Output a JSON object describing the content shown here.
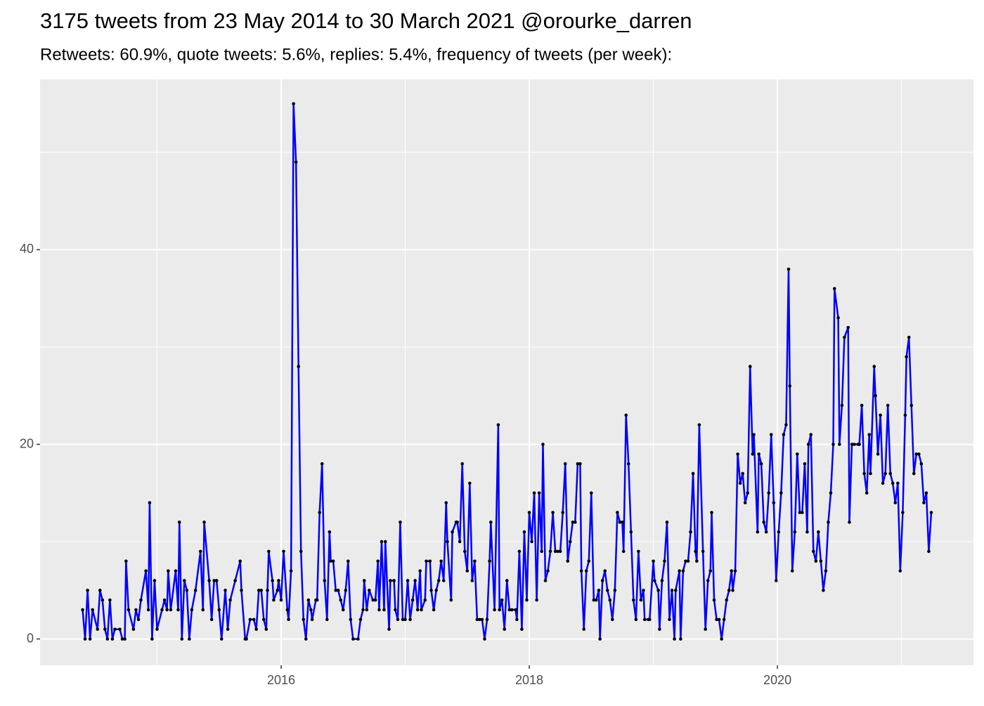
{
  "chart_data": {
    "type": "line",
    "title": "3175 tweets from 23 May 2014 to 30 March 2021 @orourke_darren",
    "subtitle": "Retweets: 60.9%, quote tweets: 5.6%, replies: 5.4%, frequency of tweets (per week):",
    "color": "#0000ff",
    "point_color": "#000000",
    "xlim": [
      2014.057,
      2021.58
    ],
    "xticks": [
      2016,
      2018,
      2020
    ],
    "xminor": [
      2015,
      2017,
      2019,
      2021
    ],
    "ylim": [
      -2.7,
      57.5
    ],
    "yticks": [
      0,
      20,
      40
    ],
    "yminor": [
      10,
      30,
      50
    ],
    "grid": true,
    "x": [
      2014.4,
      2014.42,
      2014.44,
      2014.46,
      2014.48,
      2014.52,
      2014.54,
      2014.56,
      2014.58,
      2014.6,
      2014.62,
      2014.64,
      2014.66,
      2014.7,
      2014.72,
      2014.74,
      2014.75,
      2014.77,
      2014.81,
      2014.83,
      2014.85,
      2014.87,
      2014.91,
      2014.93,
      2014.94,
      2014.96,
      2014.98,
      2015.0,
      2015.04,
      2015.06,
      2015.08,
      2015.09,
      2015.11,
      2015.15,
      2015.17,
      2015.18,
      2015.2,
      2015.22,
      2015.24,
      2015.26,
      2015.28,
      2015.31,
      2015.35,
      2015.37,
      2015.38,
      2015.42,
      2015.44,
      2015.46,
      2015.48,
      2015.5,
      2015.52,
      2015.55,
      2015.57,
      2015.59,
      2015.63,
      2015.67,
      2015.68,
      2015.71,
      2015.72,
      2015.75,
      2015.78,
      2015.8,
      2015.82,
      2015.84,
      2015.86,
      2015.88,
      2015.89,
      2015.9,
      2015.93,
      2015.94,
      2015.97,
      2015.98,
      2016.0,
      2016.02,
      2016.05,
      2016.06,
      2016.08,
      2016.1,
      2016.12,
      2016.14,
      2016.16,
      2016.18,
      2016.2,
      2016.22,
      2016.24,
      2016.25,
      2016.28,
      2016.29,
      2016.31,
      2016.33,
      2016.35,
      2016.37,
      2016.39,
      2016.4,
      2016.42,
      2016.44,
      2016.46,
      2016.48,
      2016.5,
      2016.52,
      2016.54,
      2016.56,
      2016.58,
      2016.62,
      2016.64,
      2016.66,
      2016.67,
      2016.69,
      2016.71,
      2016.74,
      2016.76,
      2016.78,
      2016.79,
      2016.81,
      2016.83,
      2016.84,
      2016.87,
      2016.88,
      2016.91,
      2016.92,
      2016.94,
      2016.96,
      2016.98,
      2017.0,
      2017.02,
      2017.04,
      2017.06,
      2017.08,
      2017.1,
      2017.12,
      2017.13,
      2017.16,
      2017.17,
      2017.2,
      2017.21,
      2017.23,
      2017.25,
      2017.27,
      2017.29,
      2017.31,
      2017.33,
      2017.34,
      2017.37,
      2017.38,
      2017.41,
      2017.42,
      2017.44,
      2017.46,
      2017.48,
      2017.5,
      2017.52,
      2017.54,
      2017.56,
      2017.58,
      2017.6,
      2017.62,
      2017.64,
      2017.66,
      2017.68,
      2017.69,
      2017.72,
      2017.75,
      2017.76,
      2017.78,
      2017.8,
      2017.82,
      2017.84,
      2017.86,
      2017.89,
      2017.9,
      2017.92,
      2017.94,
      2017.96,
      2017.98,
      2018.0,
      2018.02,
      2018.04,
      2018.06,
      2018.08,
      2018.1,
      2018.11,
      2018.13,
      2018.15,
      2018.17,
      2018.19,
      2018.21,
      2018.23,
      2018.25,
      2018.27,
      2018.29,
      2018.31,
      2018.33,
      2018.35,
      2018.37,
      2018.39,
      2018.41,
      2018.42,
      2018.44,
      2018.46,
      2018.48,
      2018.5,
      2018.52,
      2018.54,
      2018.56,
      2018.57,
      2018.59,
      2018.61,
      2018.63,
      2018.65,
      2018.67,
      2018.69,
      2018.71,
      2018.73,
      2018.75,
      2018.76,
      2018.78,
      2018.8,
      2018.82,
      2018.84,
      2018.86,
      2018.88,
      2018.9,
      2018.92,
      2018.93,
      2018.96,
      2018.97,
      2019.0,
      2019.01,
      2019.04,
      2019.05,
      2019.07,
      2019.09,
      2019.11,
      2019.13,
      2019.15,
      2019.17,
      2019.18,
      2019.21,
      2019.22,
      2019.24,
      2019.26,
      2019.28,
      2019.3,
      2019.32,
      2019.34,
      2019.35,
      2019.37,
      2019.4,
      2019.42,
      2019.44,
      2019.46,
      2019.47,
      2019.49,
      2019.51,
      2019.53,
      2019.55,
      2019.57,
      2019.59,
      2019.61,
      2019.63,
      2019.64,
      2019.66,
      2019.68,
      2019.7,
      2019.72,
      2019.74,
      2019.76,
      2019.78,
      2019.8,
      2019.81,
      2019.84,
      2019.85,
      2019.87,
      2019.89,
      2019.91,
      2019.93,
      2019.95,
      2019.97,
      2019.99,
      2020.01,
      2020.03,
      2020.05,
      2020.07,
      2020.09,
      2020.1,
      2020.12,
      2020.14,
      2020.16,
      2020.18,
      2020.2,
      2020.22,
      2020.24,
      2020.25,
      2020.27,
      2020.29,
      2020.31,
      2020.33,
      2020.35,
      2020.37,
      2020.39,
      2020.41,
      2020.43,
      2020.45,
      2020.46,
      2020.49,
      2020.5,
      2020.52,
      2020.54,
      2020.57,
      2020.58,
      2020.6,
      2020.62,
      2020.65,
      2020.66,
      2020.68,
      2020.7,
      2020.72,
      2020.74,
      2020.75,
      2020.78,
      2020.79,
      2020.81,
      2020.83,
      2020.85,
      2020.87,
      2020.89,
      2020.91,
      2020.93,
      2020.95,
      2020.97,
      2020.99,
      2021.01,
      2021.03,
      2021.04,
      2021.06,
      2021.08,
      2021.1,
      2021.12,
      2021.14,
      2021.16,
      2021.18,
      2021.2,
      2021.22,
      2021.24
    ],
    "values": [
      3,
      0,
      5,
      0,
      3,
      1,
      5,
      4,
      1,
      0,
      4,
      0,
      1,
      1,
      0,
      0,
      8,
      3,
      1,
      3,
      2,
      4,
      7,
      3,
      14,
      0,
      6,
      1,
      3,
      4,
      3,
      7,
      3,
      7,
      3,
      12,
      0,
      6,
      5,
      0,
      3,
      5,
      9,
      3,
      12,
      6,
      2,
      6,
      6,
      3,
      0,
      5,
      1,
      4,
      6,
      8,
      5,
      0,
      0,
      2,
      2,
      1,
      5,
      5,
      2,
      1,
      5,
      9,
      6,
      4,
      5,
      6,
      4,
      9,
      3,
      2,
      7,
      55,
      49,
      28,
      9,
      2,
      0,
      4,
      3,
      2,
      4,
      4,
      13,
      18,
      6,
      2,
      11,
      8,
      8,
      5,
      5,
      4,
      3,
      5,
      8,
      2,
      0,
      0,
      2,
      3,
      6,
      3,
      5,
      4,
      4,
      8,
      3,
      10,
      3,
      10,
      1,
      6,
      6,
      3,
      2,
      12,
      2,
      2,
      6,
      2,
      4,
      6,
      3,
      7,
      3,
      4,
      8,
      8,
      5,
      3,
      5,
      6,
      8,
      6,
      14,
      10,
      4,
      11,
      12,
      12,
      10,
      18,
      9,
      7,
      16,
      6,
      8,
      2,
      2,
      2,
      0,
      2,
      8,
      12,
      3,
      22,
      3,
      4,
      1,
      6,
      3,
      3,
      3,
      2,
      9,
      1,
      11,
      4,
      13,
      10,
      15,
      4,
      15,
      9,
      20,
      6,
      7,
      9,
      13,
      9,
      9,
      9,
      13,
      18,
      8,
      10,
      12,
      12,
      18,
      18,
      7,
      1,
      7,
      8,
      15,
      4,
      4,
      5,
      0,
      6,
      7,
      5,
      4,
      2,
      5,
      13,
      12,
      12,
      9,
      23,
      18,
      11,
      4,
      2,
      9,
      4,
      5,
      2,
      2,
      2,
      8,
      6,
      5,
      1,
      6,
      8,
      12,
      2,
      5,
      0,
      5,
      7,
      0,
      7,
      8,
      8,
      11,
      17,
      9,
      8,
      22,
      9,
      1,
      6,
      7,
      13,
      4,
      2,
      2,
      0,
      2,
      4,
      5,
      7,
      5,
      7,
      19,
      16,
      17,
      14,
      15,
      28,
      19,
      21,
      11,
      19,
      18,
      12,
      11,
      15,
      21,
      14,
      6,
      11,
      15,
      21,
      22,
      38,
      26,
      7,
      11,
      19,
      13,
      13,
      18,
      11,
      20,
      21,
      9,
      8,
      11,
      8,
      5,
      7,
      12,
      15,
      20,
      36,
      33,
      20,
      24,
      31,
      32,
      12,
      20,
      20,
      20,
      20,
      24,
      17,
      15,
      21,
      17,
      28,
      25,
      19,
      23,
      16,
      17,
      24,
      17,
      16,
      14,
      16,
      7,
      13,
      23,
      29,
      31,
      24,
      17,
      19,
      19,
      18,
      14,
      15,
      9,
      13
    ]
  }
}
